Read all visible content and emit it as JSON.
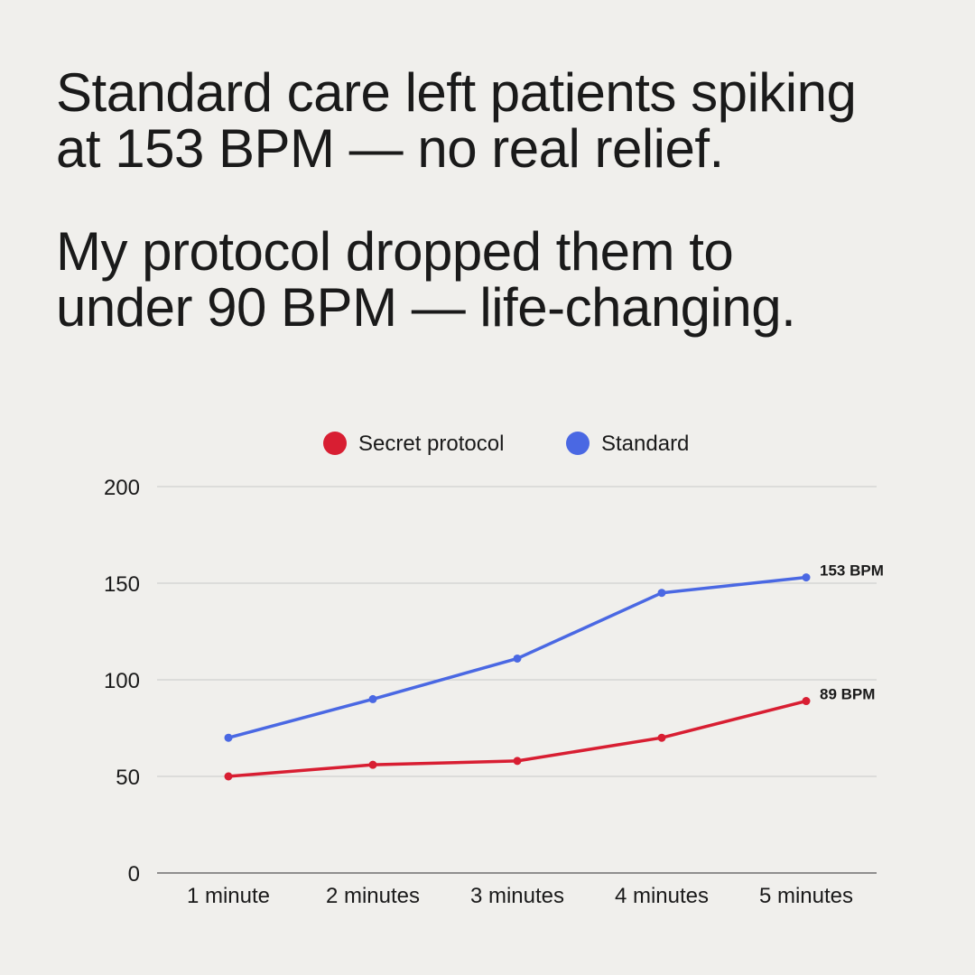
{
  "headline": {
    "line1": "Standard care left patients spiking",
    "line2": "at 153 BPM — no real relief.",
    "line3": "My protocol dropped them to",
    "line4": "under 90 BPM — life-changing."
  },
  "colors": {
    "background": "#f0efec",
    "secret": "#d81e32",
    "standard": "#4a68e3",
    "grid": "#c9c9c9",
    "axis": "#555555"
  },
  "chart_data": {
    "type": "line",
    "title": "",
    "xlabel": "",
    "ylabel": "",
    "categories": [
      "1 minute",
      "2 minutes",
      "3 minutes",
      "4 minutes",
      "5 minutes"
    ],
    "ylim": [
      0,
      200
    ],
    "yticks": [
      0,
      50,
      100,
      150,
      200
    ],
    "legend_position": "top-center",
    "grid": true,
    "series": [
      {
        "name": "Secret protocol",
        "key": "secret",
        "values": [
          50,
          56,
          58,
          70,
          89
        ],
        "end_label": "89 BPM"
      },
      {
        "name": "Standard",
        "key": "standard",
        "values": [
          70,
          90,
          111,
          145,
          153
        ],
        "end_label": "153 BPM"
      }
    ]
  }
}
